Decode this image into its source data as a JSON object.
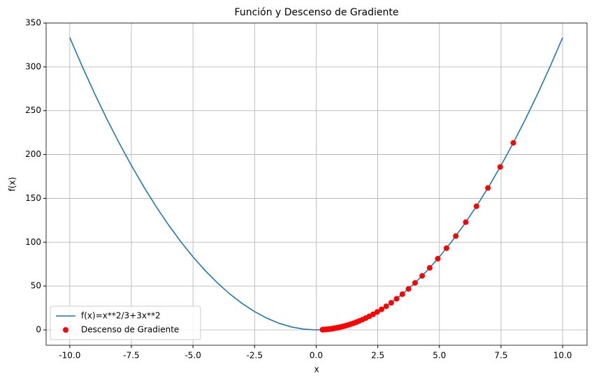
{
  "chart_data": {
    "type": "line",
    "title": "Función y Descenso de Gradiente",
    "xlabel": "x",
    "ylabel": "f(x)",
    "xlim": [
      -10.96,
      10.99
    ],
    "ylim": [
      -17.5,
      350
    ],
    "xticks": [
      {
        "value": -10,
        "label": "-10.0"
      },
      {
        "value": -7.5,
        "label": "-7.5"
      },
      {
        "value": -5,
        "label": "-5.0"
      },
      {
        "value": -2.5,
        "label": "-2.5"
      },
      {
        "value": 0,
        "label": "0.0"
      },
      {
        "value": 2.5,
        "label": "2.5"
      },
      {
        "value": 5,
        "label": "5.0"
      },
      {
        "value": 7.5,
        "label": "7.5"
      },
      {
        "value": 10,
        "label": "10.0"
      }
    ],
    "yticks": [
      0,
      50,
      100,
      150,
      200,
      250,
      300,
      350
    ],
    "grid": true,
    "legend": "lower left",
    "series": [
      {
        "name": "f(x)=x**2/3+3x**2",
        "type": "line",
        "color": "#1f77b4",
        "x": [
          -10,
          -9.5,
          -9,
          -8.5,
          -8,
          -7.5,
          -7,
          -6.5,
          -6,
          -5.5,
          -5,
          -4.5,
          -4,
          -3.5,
          -3,
          -2.5,
          -2,
          -1.5,
          -1,
          -0.5,
          0,
          0.5,
          1,
          1.5,
          2,
          2.5,
          3,
          3.5,
          4,
          4.5,
          5,
          5.5,
          6,
          6.5,
          7,
          7.5,
          8,
          8.5,
          9,
          9.5,
          10
        ],
        "values": [
          333.33,
          300.83,
          270,
          240.83,
          213.33,
          187.5,
          163.33,
          140.83,
          120,
          100.83,
          83.33,
          67.5,
          53.33,
          40.83,
          30,
          20.83,
          13.33,
          7.5,
          3.33,
          0.83,
          0,
          0.83,
          3.33,
          7.5,
          13.33,
          20.83,
          30,
          40.83,
          53.33,
          67.5,
          83.33,
          100.83,
          120,
          140.83,
          163.33,
          187.5,
          213.33,
          240.83,
          270,
          300.83,
          333.33
        ]
      },
      {
        "name": "Descenso de Gradiente",
        "type": "scatter",
        "color": "#ff0000",
        "x": [
          8,
          7.467,
          6.969,
          6.504,
          6.071,
          5.666,
          5.288,
          4.936,
          4.607,
          4.3,
          4.013,
          3.746,
          3.496,
          3.263,
          3.045,
          2.842,
          2.653,
          2.476,
          2.311,
          2.157,
          2.013,
          1.879,
          1.754,
          1.637,
          1.528,
          1.426,
          1.331,
          1.242,
          1.159,
          1.082,
          1.01,
          0.943,
          0.88,
          0.821,
          0.766,
          0.715,
          0.668,
          0.623,
          0.582,
          0.543,
          0.507,
          0.473,
          0.441,
          0.412,
          0.385,
          0.359,
          0.335,
          0.313,
          0.292,
          0.272,
          0.254
        ],
        "values": [
          213.33,
          185.85,
          161.89,
          141.01,
          122.86,
          107.01,
          93.21,
          81.21,
          70.75,
          61.63,
          53.68,
          46.77,
          40.74,
          35.49,
          30.91,
          26.92,
          23.46,
          20.44,
          17.8,
          15.51,
          13.51,
          11.77,
          10.26,
          8.93,
          7.78,
          6.78,
          5.91,
          5.14,
          4.48,
          3.9,
          3.4,
          2.96,
          2.58,
          2.25,
          1.96,
          1.7,
          1.49,
          1.29,
          1.13,
          0.98,
          0.86,
          0.75,
          0.65,
          0.57,
          0.49,
          0.43,
          0.37,
          0.33,
          0.28,
          0.25,
          0.22
        ]
      }
    ]
  }
}
